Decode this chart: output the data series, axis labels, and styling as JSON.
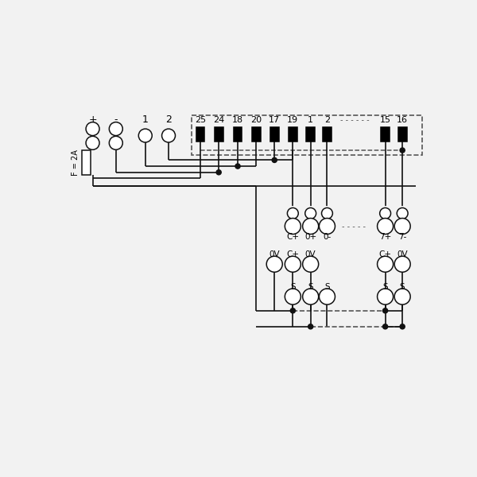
{
  "bg": "#f2f2f2",
  "lc": "#111111",
  "dc": "#555555",
  "figsize": [
    6.0,
    6.0
  ],
  "dpi": 100,
  "top_labels": [
    "25",
    "24",
    "18",
    "20",
    "17",
    "19",
    "1",
    "2",
    "15",
    "16"
  ],
  "left_labels": [
    "+",
    "-",
    "1",
    "2"
  ],
  "r1g1_labels": [
    "C+",
    "0+",
    "0-"
  ],
  "r1g2_labels": [
    "7+",
    "7-"
  ],
  "r2g1_labels": [
    "0V",
    "C+",
    "0V"
  ],
  "r2g2_labels": [
    "C+",
    "0V"
  ],
  "r3_labels": [
    "S",
    "S",
    "S",
    "S",
    "S"
  ],
  "fuse_label": "F = 2A",
  "dots_text": "- - - - - -"
}
